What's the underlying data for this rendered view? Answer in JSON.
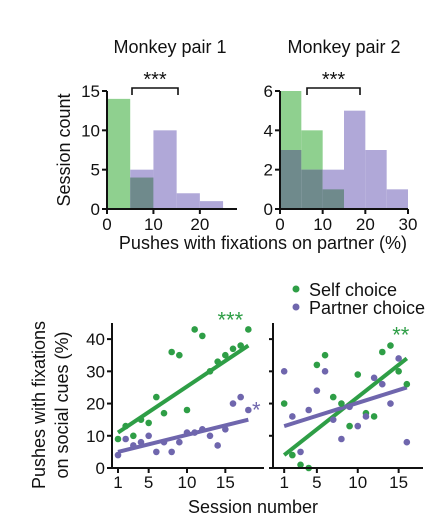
{
  "colors": {
    "self": "#2e9e46",
    "partner": "#6f66ad",
    "self_fill": "#8fd08f",
    "partner_fill": "#b0a8d8",
    "overlap_fill": "#6f8a8c",
    "axis": "#111111"
  },
  "legend": {
    "self": "Self choice",
    "partner": "Partner choice"
  },
  "shared_labels": {
    "hist_xlabel": "Pushes with fixations on partner (%)",
    "hist_ylabel": "Session count",
    "scatter_xlabel": "Session number",
    "scatter_ylabel_line1": "Pushes with fixations",
    "scatter_ylabel_line2": "on social cues (%)"
  },
  "chart_data": [
    {
      "type": "bar",
      "title": "Monkey pair 1",
      "xlabel": "Pushes with fixations on partner (%)",
      "ylabel": "Session count",
      "bin_edges": [
        0,
        5,
        10,
        15,
        20,
        25
      ],
      "series": [
        {
          "name": "Self choice",
          "values": [
            14,
            4,
            0,
            0,
            0
          ]
        },
        {
          "name": "Partner choice",
          "values": [
            0,
            5,
            10,
            2,
            1
          ]
        }
      ],
      "xlim": [
        0,
        28
      ],
      "ylim": [
        0,
        15
      ],
      "xticks": [
        "0",
        "10",
        "20"
      ],
      "yticks": [
        "0",
        "5",
        "10",
        "15"
      ],
      "significance": "***"
    },
    {
      "type": "bar",
      "title": "Monkey pair 2",
      "bin_edges": [
        0,
        5,
        10,
        15,
        20,
        25,
        30
      ],
      "series": [
        {
          "name": "Self choice",
          "values": [
            6,
            4,
            1,
            0,
            0,
            0
          ]
        },
        {
          "name": "Partner choice",
          "values": [
            3,
            2,
            2,
            5,
            3,
            1
          ]
        }
      ],
      "xlim": [
        0,
        30
      ],
      "ylim": [
        0,
        6
      ],
      "xticks": [
        "0",
        "10",
        "20",
        "30"
      ],
      "yticks": [
        "0",
        "2",
        "4",
        "6"
      ],
      "significance": "***"
    },
    {
      "type": "scatter",
      "xlabel": "Session number",
      "ylabel": "Pushes with fixations on social cues (%)",
      "xlim": [
        1,
        19
      ],
      "ylim": [
        0,
        45
      ],
      "xticks": [
        "1",
        "5",
        "10",
        "15"
      ],
      "yticks": [
        "0",
        "10",
        "20",
        "30",
        "40"
      ],
      "series": [
        {
          "name": "Self choice",
          "points": [
            [
              1,
              9
            ],
            [
              2,
              13
            ],
            [
              3,
              10
            ],
            [
              4,
              15
            ],
            [
              5,
              14
            ],
            [
              6,
              22
            ],
            [
              7,
              17
            ],
            [
              8,
              36
            ],
            [
              9,
              35
            ],
            [
              10,
              18
            ],
            [
              11,
              43
            ],
            [
              12,
              41
            ],
            [
              13,
              30
            ],
            [
              14,
              33
            ],
            [
              15,
              35
            ],
            [
              16,
              37
            ],
            [
              17,
              38
            ],
            [
              18,
              43
            ]
          ],
          "trend": [
            [
              1,
              11
            ],
            [
              18,
              38
            ]
          ],
          "significance": "***"
        },
        {
          "name": "Partner choice",
          "points": [
            [
              1,
              4
            ],
            [
              2,
              9
            ],
            [
              3,
              7
            ],
            [
              4,
              8
            ],
            [
              5,
              10
            ],
            [
              6,
              5
            ],
            [
              7,
              8
            ],
            [
              8,
              5
            ],
            [
              9,
              8
            ],
            [
              10,
              11
            ],
            [
              11,
              11
            ],
            [
              12,
              12
            ],
            [
              13,
              10
            ],
            [
              14,
              7
            ],
            [
              15,
              12
            ],
            [
              16,
              20
            ],
            [
              17,
              22
            ],
            [
              18,
              18
            ]
          ],
          "trend": [
            [
              1,
              5
            ],
            [
              18,
              15
            ]
          ],
          "significance": "*"
        }
      ]
    },
    {
      "type": "scatter",
      "xlabel": "Session number",
      "xlim": [
        0,
        17
      ],
      "ylim": [
        0,
        45
      ],
      "xticks": [
        "1",
        "5",
        "10",
        "15"
      ],
      "series": [
        {
          "name": "Self choice",
          "points": [
            [
              1,
              20
            ],
            [
              2,
              4
            ],
            [
              3,
              1
            ],
            [
              4,
              0
            ],
            [
              5,
              32
            ],
            [
              6,
              35
            ],
            [
              7,
              22
            ],
            [
              8,
              20
            ],
            [
              9,
              13
            ],
            [
              10,
              29
            ],
            [
              11,
              17
            ],
            [
              12,
              16
            ],
            [
              13,
              36
            ],
            [
              14,
              38
            ],
            [
              15,
              30
            ],
            [
              16,
              26
            ]
          ],
          "trend": [
            [
              1,
              4
            ],
            [
              16,
              34
            ]
          ],
          "significance": "**"
        },
        {
          "name": "Partner choice",
          "points": [
            [
              1,
              30
            ],
            [
              2,
              16
            ],
            [
              3,
              5
            ],
            [
              4,
              18
            ],
            [
              5,
              24
            ],
            [
              6,
              30
            ],
            [
              7,
              15
            ],
            [
              8,
              9
            ],
            [
              9,
              19
            ],
            [
              10,
              13
            ],
            [
              11,
              16
            ],
            [
              12,
              28
            ],
            [
              13,
              26
            ],
            [
              14,
              20
            ],
            [
              15,
              34
            ],
            [
              16,
              8
            ]
          ],
          "trend": [
            [
              1,
              13
            ],
            [
              16,
              25
            ]
          ],
          "significance": ""
        }
      ]
    }
  ]
}
